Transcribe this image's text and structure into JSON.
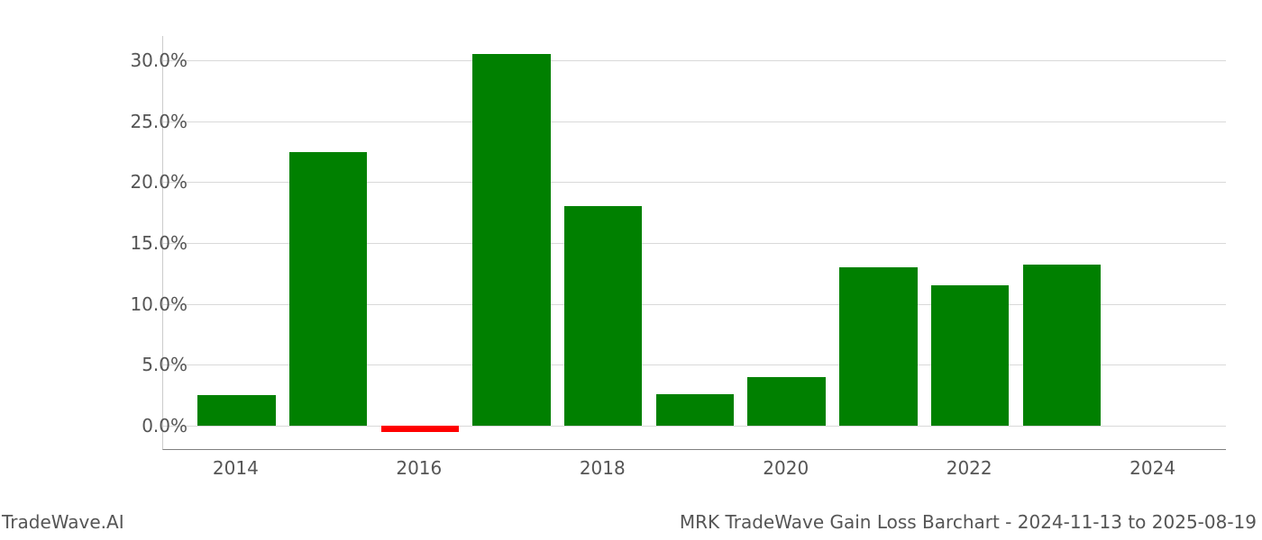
{
  "chart": {
    "type": "bar",
    "background_color": "#ffffff",
    "grid_color": "#d9d9d9",
    "axis_color": "#808080",
    "positive_color": "#008000",
    "negative_color": "#ff0000",
    "label_color": "#555555",
    "label_fontsize": 20,
    "yaxis": {
      "min": -2.0,
      "max": 32.0,
      "ticks": [
        0.0,
        5.0,
        10.0,
        15.0,
        20.0,
        25.0,
        30.0
      ],
      "tick_labels": [
        "0.0%",
        "5.0%",
        "10.0%",
        "15.0%",
        "20.0%",
        "25.0%",
        "30.0%"
      ]
    },
    "xaxis": {
      "min": 2013.2,
      "max": 2024.8,
      "ticks": [
        2014,
        2016,
        2018,
        2020,
        2022,
        2024
      ],
      "tick_labels": [
        "2014",
        "2016",
        "2018",
        "2020",
        "2022",
        "2024"
      ]
    },
    "bars": [
      {
        "year": 2014,
        "value": 2.5
      },
      {
        "year": 2015,
        "value": 22.5
      },
      {
        "year": 2016,
        "value": -0.5
      },
      {
        "year": 2017,
        "value": 30.5
      },
      {
        "year": 2018,
        "value": 18.0
      },
      {
        "year": 2019,
        "value": 2.6
      },
      {
        "year": 2020,
        "value": 4.0
      },
      {
        "year": 2021,
        "value": 13.0
      },
      {
        "year": 2022,
        "value": 11.5
      },
      {
        "year": 2023,
        "value": 13.2
      }
    ],
    "bar_width": 0.85
  },
  "footer": {
    "left": "TradeWave.AI",
    "right": "MRK TradeWave Gain Loss Barchart - 2024-11-13 to 2025-08-19"
  }
}
